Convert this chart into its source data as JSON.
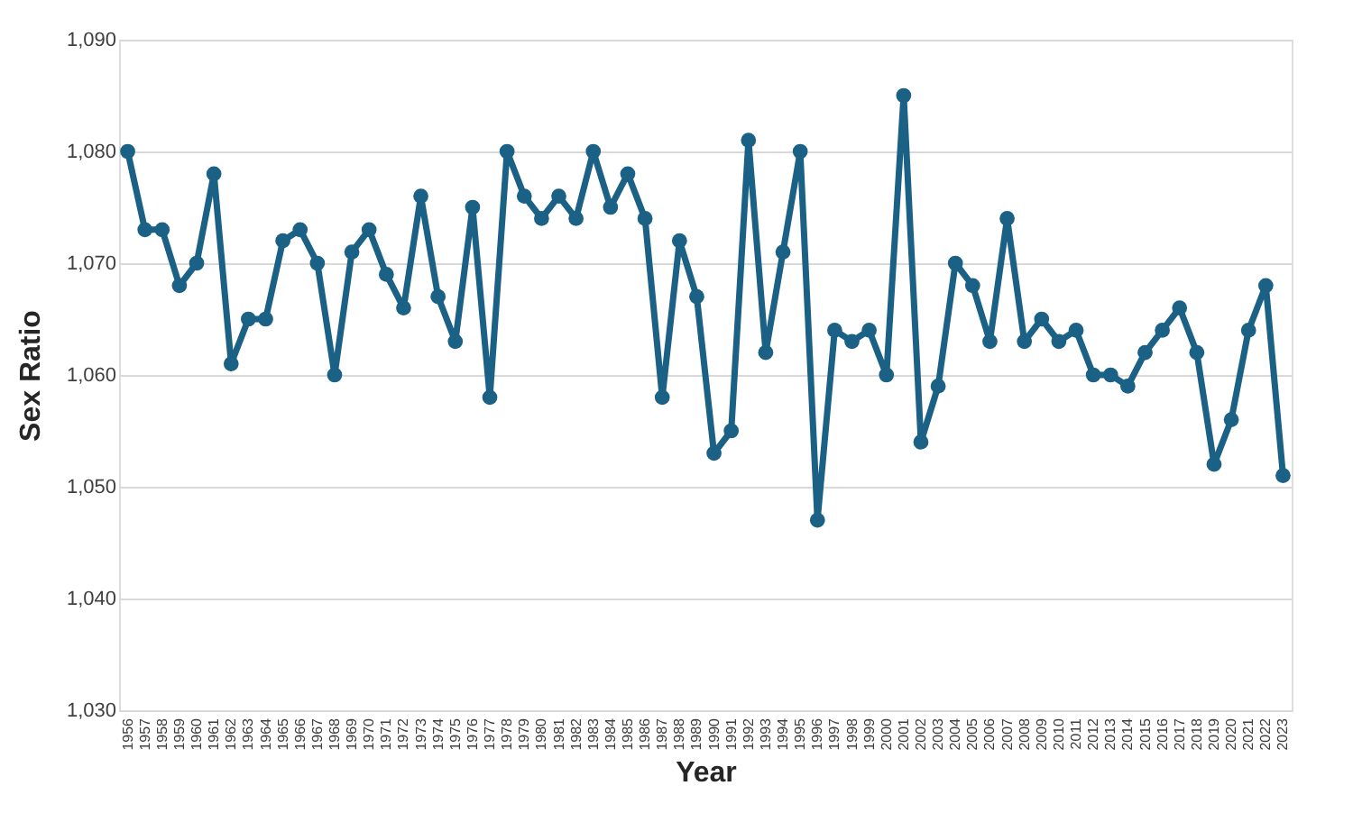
{
  "chart_data": {
    "type": "line",
    "xlabel": "Year",
    "ylabel": "Sex Ratio",
    "categories": [
      "1956",
      "1957",
      "1958",
      "1959",
      "1960",
      "1961",
      "1962",
      "1963",
      "1964",
      "1965",
      "1966",
      "1967",
      "1968",
      "1969",
      "1970",
      "1971",
      "1972",
      "1973",
      "1974",
      "1975",
      "1976",
      "1977",
      "1978",
      "1979",
      "1980",
      "1981",
      "1982",
      "1983",
      "1984",
      "1985",
      "1986",
      "1987",
      "1988",
      "1989",
      "1990",
      "1991",
      "1992",
      "1993",
      "1994",
      "1995",
      "1996",
      "1997",
      "1998",
      "1999",
      "2000",
      "2001",
      "2002",
      "2003",
      "2004",
      "2005",
      "2006",
      "2007",
      "2008",
      "2009",
      "2010",
      "2011",
      "2012",
      "2013",
      "2014",
      "2015",
      "2016",
      "2017",
      "2018",
      "2019",
      "2020",
      "2021",
      "2022",
      "2023"
    ],
    "series": [
      {
        "color": "#1b6185",
        "values": [
          1080,
          1073,
          1073,
          1068,
          1070,
          1078,
          1061,
          1065,
          1065,
          1072,
          1073,
          1070,
          1060,
          1071,
          1073,
          1069,
          1066,
          1076,
          1067,
          1063,
          1075,
          1058,
          1080,
          1076,
          1074,
          1076,
          1074,
          1080,
          1075,
          1078,
          1074,
          1058,
          1072,
          1067,
          1053,
          1055,
          1081,
          1062,
          1071,
          1080,
          1047,
          1064,
          1063,
          1064,
          1060,
          1085,
          1054,
          1059,
          1070,
          1068,
          1063,
          1074,
          1063,
          1065,
          1063,
          1064,
          1060,
          1060,
          1059,
          1062,
          1064,
          1066,
          1062,
          1052,
          1056,
          1064,
          1068,
          1051
        ]
      }
    ],
    "ylim": [
      1030,
      1090
    ],
    "yticks": [
      {
        "value": 1030,
        "label": "1,030"
      },
      {
        "value": 1040,
        "label": "1,040"
      },
      {
        "value": 1050,
        "label": "1,050"
      },
      {
        "value": 1060,
        "label": "1,060"
      },
      {
        "value": 1070,
        "label": "1,070"
      },
      {
        "value": 1080,
        "label": "1,080"
      },
      {
        "value": 1090,
        "label": "1,090"
      }
    ],
    "grid": "y",
    "marker": "circle",
    "line_style": "solid"
  }
}
